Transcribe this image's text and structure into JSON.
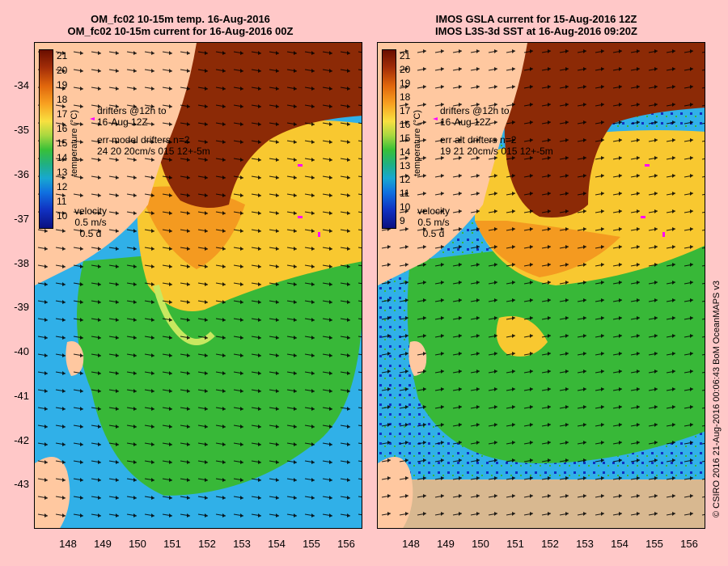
{
  "left": {
    "title1": "OM_fc02 10-15m temp. 16-Aug-2016",
    "title2": "OM_fc02 10-15m current for 16-Aug-2016 00Z",
    "drifter1": "drifters @12h to",
    "drifter2": "16-Aug 12Z",
    "err1": "err model drifters n=2",
    "err2": "24 20 20cm/s 015 12+-5m",
    "colorbar_ticks": [
      "21",
      "20",
      "19",
      "18",
      "17",
      "16",
      "15",
      "14",
      "13",
      "12",
      "11",
      "10"
    ]
  },
  "right": {
    "title1": "IMOS GSLA current for 15-Aug-2016 12Z",
    "title2": "IMOS L3S-3d SST at 16-Aug-2016 09:20Z",
    "drifter1": "drifters @12h to",
    "drifter2": "16-Aug 12Z",
    "err1": "err alt drifters n=2",
    "err2": "19 21 20cm/s 015 12+-5m",
    "colorbar_ticks": [
      "21",
      "20",
      "19",
      "18",
      "17",
      "16",
      "15",
      "14",
      "13",
      "12",
      "11",
      "10",
      "9"
    ]
  },
  "colorbar_unit": "temperature (°C)",
  "velocity": {
    "label": "velocity",
    "speed": "0.5 m/s",
    "duration": "0.5 d"
  },
  "y_ticks": [
    "-34",
    "-35",
    "-36",
    "-37",
    "-38",
    "-39",
    "-40",
    "-41",
    "-42",
    "-43"
  ],
  "x_ticks": [
    "148",
    "149",
    "150",
    "151",
    "152",
    "153",
    "154",
    "155",
    "156"
  ],
  "copyright": "© CSIRO 2016   21-Aug-2016 00:06:43 BoM OceanMAPS v3",
  "colors": {
    "land": "#ffc8a0",
    "warm": "#8c2a06",
    "mid": "#f8c830",
    "cool": "#38b838",
    "cold": "#30b0e8",
    "drifter": "#ff00ff"
  }
}
